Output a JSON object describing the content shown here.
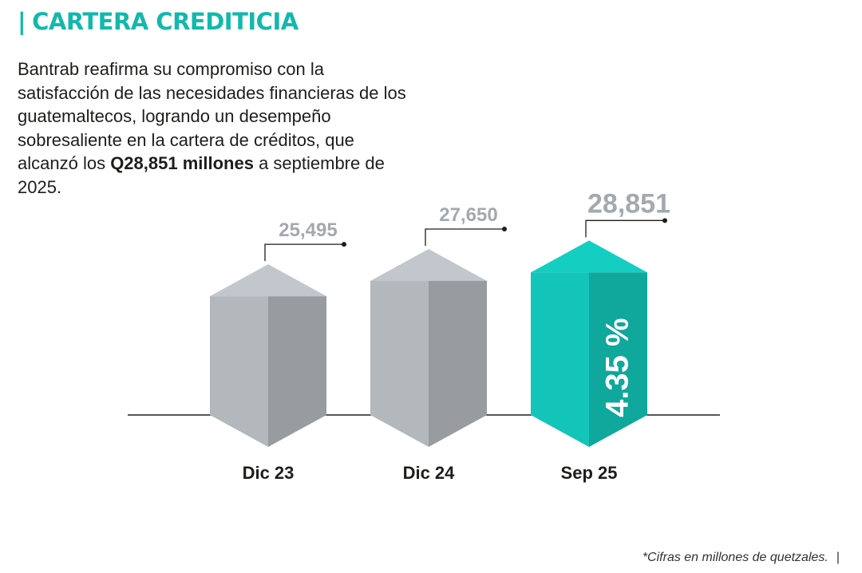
{
  "header": {
    "title_bar": "|",
    "title": "CARTERA CREDITICIA"
  },
  "intro": {
    "text_before": "Bantrab reafirma su compromiso con la satisfacción de las necesidades financieras de los guatemaltecos, logrando un desempeño sobresaliente en la cartera de créditos, que alcanzó los ",
    "highlight": "Q28,851 millones",
    "text_after": " a septiembre de 2025."
  },
  "footnote": {
    "text": "*Cifras en millones de quetzales.",
    "pipe": "|"
  },
  "chart_data": {
    "type": "bar",
    "categories": [
      "Dic 23",
      "Dic 24",
      "Sep 25"
    ],
    "values": [
      25495,
      27650,
      28851
    ],
    "value_labels": [
      "25,495",
      "27,650",
      "28,851"
    ],
    "highlight_index": 2,
    "annotation": "4.35 %",
    "colors": {
      "bar": "#b3b8bd",
      "highlight": "#13c4b8",
      "label": "#a3a9af",
      "axis": "#1d1d1b"
    }
  }
}
